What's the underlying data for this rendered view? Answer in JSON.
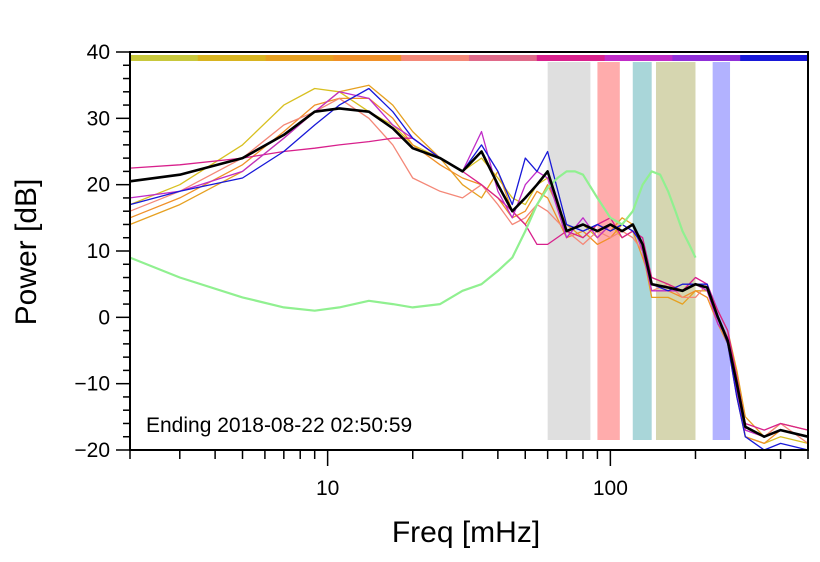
{
  "chart_data": {
    "type": "line",
    "title": "",
    "xlabel": "Freq [mHz]",
    "ylabel": "Power [dB]",
    "x_scale": "log",
    "xlim": [
      2,
      500
    ],
    "ylim": [
      -20,
      40
    ],
    "x_ticks": [
      10,
      100
    ],
    "y_ticks": [
      -20,
      -10,
      0,
      10,
      20,
      30,
      40
    ],
    "grid": false,
    "legend": "none",
    "annotation": "Ending 2018-08-22 02:50:59",
    "color_bar": [
      "#c8c83c",
      "#d8b420",
      "#e6a020",
      "#f09028",
      "#f48878",
      "#e06a8a",
      "#d8208c",
      "#c02cc8",
      "#9030d8",
      "#1818d8"
    ],
    "bands": [
      {
        "from": 60,
        "to": 85,
        "color": "#d4d4d4"
      },
      {
        "from": 90,
        "to": 108,
        "color": "#ff9090"
      },
      {
        "from": 120,
        "to": 140,
        "color": "#8cc8cc"
      },
      {
        "from": 145,
        "to": 200,
        "color": "#c8c896"
      },
      {
        "from": 230,
        "to": 265,
        "color": "#9898ff"
      }
    ],
    "series": [
      {
        "color": "#d8c020",
        "x": [
          2,
          3,
          5,
          7,
          9,
          11,
          14,
          17,
          20,
          25,
          30,
          35,
          40,
          45,
          50,
          55,
          60,
          70,
          80,
          90,
          100,
          110,
          120,
          130,
          140,
          160,
          180,
          200,
          220,
          240,
          260,
          280,
          300,
          350,
          400,
          500
        ],
        "y": [
          17,
          20,
          26,
          32,
          34.5,
          34,
          31,
          29,
          26,
          24,
          22,
          24,
          21,
          18,
          17,
          20,
          21,
          13,
          14,
          12,
          14,
          12,
          13,
          11,
          6,
          5,
          4,
          5,
          4,
          0,
          -3,
          -10,
          -18,
          -19,
          -18,
          -19
        ]
      },
      {
        "color": "#e6a020",
        "x": [
          2,
          3,
          5,
          7,
          9,
          11,
          14,
          17,
          20,
          25,
          30,
          35,
          40,
          45,
          50,
          55,
          60,
          70,
          80,
          90,
          100,
          110,
          120,
          130,
          140,
          160,
          180,
          200,
          220,
          240,
          260,
          280,
          300,
          350,
          400,
          500
        ],
        "y": [
          14,
          17,
          22,
          27,
          31,
          34,
          35,
          32,
          28,
          24,
          20,
          18,
          22,
          16,
          14,
          17,
          20,
          14,
          12,
          14,
          13,
          15,
          14,
          10,
          3,
          3,
          2,
          4,
          4,
          1,
          -2,
          -8,
          -15,
          -18,
          -16,
          -17
        ]
      },
      {
        "color": "#f09028",
        "x": [
          2,
          3,
          5,
          7,
          9,
          11,
          14,
          17,
          20,
          25,
          30,
          35,
          40,
          45,
          50,
          55,
          60,
          70,
          80,
          90,
          100,
          110,
          120,
          130,
          140,
          160,
          180,
          200,
          220,
          240,
          260,
          280,
          300,
          350,
          400,
          500
        ],
        "y": [
          15,
          18,
          23,
          28,
          32,
          33,
          33,
          30,
          26,
          23,
          21,
          20,
          18,
          15,
          16,
          19,
          18,
          12,
          13,
          11,
          12,
          14,
          13,
          9,
          5,
          4,
          3,
          4,
          3,
          -1,
          -4,
          -12,
          -18,
          -19,
          -17,
          -18
        ]
      },
      {
        "color": "#f48878",
        "x": [
          2,
          3,
          5,
          7,
          9,
          11,
          14,
          17,
          20,
          25,
          30,
          35,
          40,
          45,
          50,
          55,
          60,
          70,
          80,
          90,
          100,
          110,
          120,
          130,
          140,
          160,
          180,
          200,
          220,
          240,
          260,
          280,
          300,
          350,
          400,
          500
        ],
        "y": [
          16,
          19,
          24,
          29,
          31,
          33,
          30,
          26,
          21,
          19,
          18,
          20,
          17,
          14,
          15,
          17,
          16,
          13,
          11,
          13,
          12,
          13,
          12,
          10,
          4,
          5,
          3,
          3,
          5,
          0,
          -3,
          -9,
          -17,
          -18,
          -16,
          -19
        ]
      },
      {
        "color": "#d8208c",
        "x": [
          2,
          3,
          5,
          7,
          9,
          11,
          14,
          17,
          20,
          25,
          30,
          35,
          40,
          45,
          50,
          55,
          60,
          70,
          80,
          90,
          100,
          110,
          120,
          130,
          140,
          160,
          180,
          200,
          220,
          240,
          260,
          280,
          300,
          350,
          400,
          500
        ],
        "y": [
          22.5,
          23,
          24,
          25,
          25.5,
          26,
          26.5,
          27,
          27,
          24,
          22,
          20,
          18,
          16,
          14,
          11,
          11,
          13,
          12,
          14,
          15,
          12,
          13,
          12,
          6,
          5,
          4,
          6,
          5,
          1,
          -2,
          -9,
          -16,
          -17,
          -16,
          -17
        ]
      },
      {
        "color": "#c02cc8",
        "x": [
          2,
          3,
          5,
          7,
          9,
          11,
          14,
          17,
          20,
          25,
          30,
          35,
          40,
          45,
          50,
          55,
          60,
          70,
          80,
          90,
          100,
          110,
          120,
          130,
          140,
          160,
          180,
          200,
          220,
          240,
          260,
          280,
          300,
          350,
          400,
          500
        ],
        "y": [
          18,
          19,
          22,
          27,
          31,
          34,
          33,
          29,
          27,
          24,
          22,
          28,
          19,
          15,
          20,
          22,
          21,
          12,
          15,
          12,
          14,
          13,
          14,
          10,
          4,
          4,
          4,
          5,
          4,
          -1,
          -3,
          -11,
          -17,
          -18,
          -17,
          -18
        ]
      },
      {
        "color": "#1818d8",
        "x": [
          2,
          3,
          5,
          7,
          9,
          11,
          14,
          17,
          20,
          25,
          30,
          35,
          40,
          45,
          50,
          55,
          60,
          70,
          80,
          90,
          100,
          110,
          120,
          130,
          140,
          160,
          180,
          200,
          220,
          240,
          260,
          280,
          300,
          350,
          400,
          500
        ],
        "y": [
          17,
          19,
          21,
          25,
          29,
          32,
          34.5,
          31,
          27,
          24,
          22,
          26,
          22,
          17,
          24,
          22,
          25,
          14,
          13,
          14,
          13,
          14,
          13,
          11,
          5,
          4,
          5,
          5,
          5,
          0,
          -4,
          -12,
          -18,
          -20,
          -19,
          -20
        ]
      },
      {
        "color": "#90f090",
        "x": [
          2,
          3,
          5,
          7,
          9,
          11,
          14,
          17,
          20,
          25,
          30,
          35,
          40,
          45,
          50,
          55,
          60,
          65,
          70,
          75,
          80,
          90,
          100,
          110,
          120,
          130,
          140,
          150,
          160,
          170,
          180,
          190,
          200
        ],
        "y": [
          9,
          6,
          3,
          1.5,
          1,
          1.5,
          2.5,
          2,
          1.5,
          2,
          4,
          5,
          7,
          9,
          13,
          17,
          19.5,
          21,
          22,
          22,
          21.5,
          18,
          15,
          14,
          16,
          20,
          22,
          21.5,
          19,
          16,
          13,
          11,
          9
        ]
      },
      {
        "color": "#000000",
        "x": [
          2,
          3,
          5,
          7,
          9,
          11,
          14,
          17,
          20,
          25,
          30,
          35,
          40,
          45,
          50,
          55,
          60,
          70,
          80,
          90,
          100,
          110,
          120,
          130,
          140,
          160,
          180,
          200,
          220,
          240,
          260,
          280,
          300,
          350,
          400,
          500
        ],
        "y": [
          20.5,
          21.5,
          24,
          27.5,
          31,
          31.5,
          31,
          28.5,
          25.5,
          24,
          22,
          25,
          20,
          16,
          18,
          20,
          22,
          13,
          14,
          13,
          14,
          13,
          14,
          11,
          5,
          4.5,
          4,
          5,
          4.5,
          0,
          -3.5,
          -10,
          -16.5,
          -18,
          -17,
          -18
        ]
      }
    ]
  }
}
